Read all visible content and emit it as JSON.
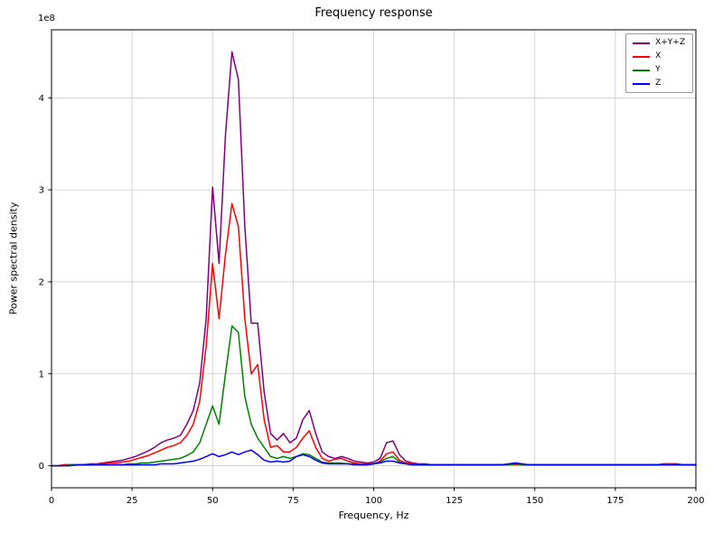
{
  "chart_data": {
    "type": "line",
    "title": "Frequency response",
    "xlabel": "Frequency, Hz",
    "ylabel": "Power spectral density",
    "offset_label": "1e8",
    "value_unit_multiplier": 100000000,
    "xlim": [
      0,
      200
    ],
    "ylim": [
      -0.24,
      4.74
    ],
    "xticks": [
      0,
      25,
      50,
      75,
      100,
      125,
      150,
      175,
      200
    ],
    "yticks": [
      0,
      1,
      2,
      3,
      4
    ],
    "grid": true,
    "legend_position": "upper right",
    "x": [
      0,
      2,
      4,
      6,
      8,
      10,
      12,
      14,
      16,
      18,
      20,
      22,
      24,
      26,
      28,
      30,
      32,
      34,
      36,
      38,
      40,
      42,
      44,
      46,
      48,
      50,
      52,
      54,
      56,
      58,
      60,
      62,
      64,
      66,
      68,
      70,
      72,
      74,
      76,
      78,
      80,
      82,
      84,
      86,
      88,
      90,
      92,
      94,
      96,
      98,
      100,
      102,
      104,
      106,
      108,
      110,
      112,
      114,
      116,
      118,
      120,
      122,
      124,
      126,
      128,
      130,
      132,
      134,
      136,
      138,
      140,
      142,
      144,
      146,
      148,
      150,
      152,
      154,
      156,
      158,
      160,
      162,
      164,
      166,
      168,
      170,
      172,
      174,
      176,
      178,
      180,
      182,
      184,
      186,
      188,
      190,
      192,
      194,
      196,
      198,
      200
    ],
    "series": [
      {
        "name": "X+Y+Z",
        "color": "#800080",
        "values": [
          0.0,
          0.0,
          0.01,
          0.01,
          0.01,
          0.01,
          0.02,
          0.02,
          0.03,
          0.04,
          0.05,
          0.06,
          0.08,
          0.1,
          0.13,
          0.16,
          0.2,
          0.25,
          0.28,
          0.3,
          0.33,
          0.45,
          0.6,
          0.9,
          1.6,
          3.03,
          2.2,
          3.6,
          4.5,
          4.2,
          2.6,
          1.55,
          1.55,
          0.8,
          0.35,
          0.28,
          0.35,
          0.25,
          0.3,
          0.5,
          0.6,
          0.35,
          0.15,
          0.1,
          0.08,
          0.1,
          0.08,
          0.05,
          0.04,
          0.03,
          0.04,
          0.08,
          0.25,
          0.27,
          0.12,
          0.05,
          0.03,
          0.02,
          0.02,
          0.01,
          0.01,
          0.01,
          0.01,
          0.01,
          0.01,
          0.01,
          0.01,
          0.01,
          0.01,
          0.01,
          0.01,
          0.02,
          0.03,
          0.02,
          0.01,
          0.01,
          0.01,
          0.01,
          0.01,
          0.01,
          0.01,
          0.01,
          0.01,
          0.01,
          0.01,
          0.01,
          0.01,
          0.01,
          0.01,
          0.01,
          0.01,
          0.01,
          0.01,
          0.01,
          0.01,
          0.02,
          0.02,
          0.02,
          0.01,
          0.01,
          0.01
        ]
      },
      {
        "name": "X",
        "color": "#ff0000",
        "values": [
          0.0,
          0.0,
          0.01,
          0.01,
          0.01,
          0.01,
          0.01,
          0.02,
          0.02,
          0.03,
          0.03,
          0.04,
          0.05,
          0.07,
          0.09,
          0.11,
          0.14,
          0.17,
          0.2,
          0.22,
          0.25,
          0.33,
          0.45,
          0.7,
          1.3,
          2.2,
          1.6,
          2.3,
          2.85,
          2.6,
          1.6,
          1.0,
          1.1,
          0.5,
          0.2,
          0.22,
          0.15,
          0.15,
          0.2,
          0.3,
          0.38,
          0.2,
          0.08,
          0.05,
          0.07,
          0.08,
          0.05,
          0.03,
          0.02,
          0.02,
          0.02,
          0.05,
          0.13,
          0.15,
          0.06,
          0.03,
          0.02,
          0.01,
          0.01,
          0.01,
          0.01,
          0.01,
          0.01,
          0.01,
          0.01,
          0.01,
          0.01,
          0.01,
          0.01,
          0.01,
          0.01,
          0.01,
          0.01,
          0.01,
          0.01,
          0.01,
          0.01,
          0.01,
          0.01,
          0.01,
          0.01,
          0.01,
          0.01,
          0.01,
          0.01,
          0.01,
          0.01,
          0.01,
          0.01,
          0.01,
          0.01,
          0.01,
          0.01,
          0.01,
          0.01,
          0.02,
          0.02,
          0.02,
          0.01,
          0.01,
          0.01
        ]
      },
      {
        "name": "Y",
        "color": "#008000",
        "values": [
          0.0,
          0.0,
          0.0,
          0.01,
          0.01,
          0.01,
          0.01,
          0.01,
          0.01,
          0.01,
          0.01,
          0.01,
          0.02,
          0.02,
          0.03,
          0.03,
          0.04,
          0.05,
          0.06,
          0.07,
          0.08,
          0.11,
          0.15,
          0.25,
          0.45,
          0.65,
          0.45,
          1.0,
          1.52,
          1.45,
          0.75,
          0.45,
          0.3,
          0.2,
          0.1,
          0.08,
          0.1,
          0.08,
          0.1,
          0.13,
          0.12,
          0.08,
          0.04,
          0.03,
          0.03,
          0.03,
          0.02,
          0.02,
          0.01,
          0.01,
          0.02,
          0.04,
          0.08,
          0.1,
          0.04,
          0.02,
          0.01,
          0.01,
          0.01,
          0.01,
          0.01,
          0.01,
          0.01,
          0.01,
          0.01,
          0.01,
          0.01,
          0.01,
          0.01,
          0.01,
          0.01,
          0.01,
          0.02,
          0.01,
          0.01,
          0.01,
          0.01,
          0.01,
          0.01,
          0.01,
          0.01,
          0.01,
          0.01,
          0.01,
          0.01,
          0.01,
          0.01,
          0.01,
          0.01,
          0.01,
          0.01,
          0.01,
          0.01,
          0.01,
          0.01,
          0.01,
          0.01,
          0.01,
          0.01,
          0.01,
          0.01
        ]
      },
      {
        "name": "Z",
        "color": "#0000ff",
        "values": [
          0.0,
          0.0,
          0.0,
          0.0,
          0.01,
          0.01,
          0.01,
          0.01,
          0.01,
          0.01,
          0.01,
          0.01,
          0.01,
          0.01,
          0.01,
          0.01,
          0.01,
          0.02,
          0.02,
          0.02,
          0.03,
          0.04,
          0.05,
          0.07,
          0.1,
          0.13,
          0.1,
          0.12,
          0.15,
          0.12,
          0.15,
          0.17,
          0.12,
          0.06,
          0.04,
          0.05,
          0.04,
          0.05,
          0.1,
          0.12,
          0.1,
          0.06,
          0.03,
          0.02,
          0.02,
          0.02,
          0.02,
          0.01,
          0.01,
          0.01,
          0.02,
          0.03,
          0.05,
          0.05,
          0.03,
          0.02,
          0.01,
          0.01,
          0.01,
          0.01,
          0.01,
          0.01,
          0.01,
          0.01,
          0.01,
          0.01,
          0.01,
          0.01,
          0.01,
          0.01,
          0.01,
          0.02,
          0.03,
          0.02,
          0.01,
          0.01,
          0.01,
          0.01,
          0.01,
          0.01,
          0.01,
          0.01,
          0.01,
          0.01,
          0.01,
          0.01,
          0.01,
          0.01,
          0.01,
          0.01,
          0.01,
          0.01,
          0.01,
          0.01,
          0.01,
          0.01,
          0.01,
          0.01,
          0.01,
          0.01,
          0.01
        ]
      }
    ],
    "style": {
      "grid_color": "#cccccc",
      "spine_color": "#000000",
      "background": "#ffffff",
      "line_width": 1.5
    }
  }
}
